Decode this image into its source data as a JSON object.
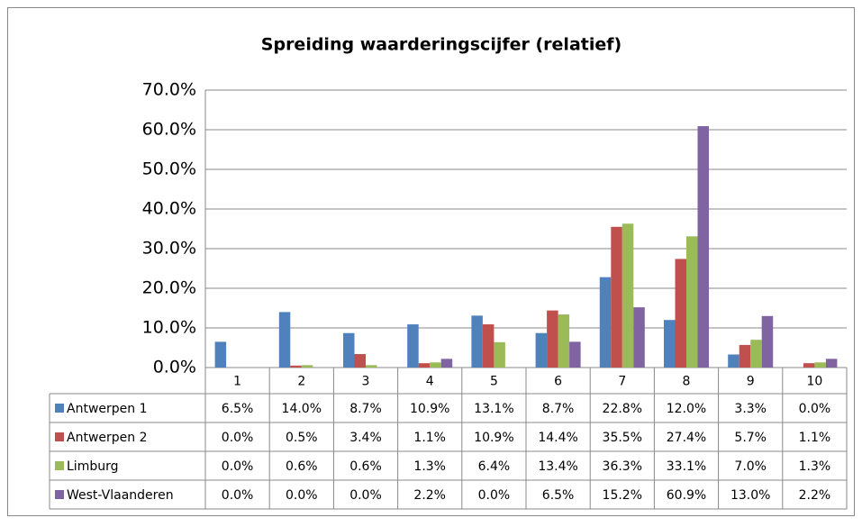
{
  "chart_data": {
    "type": "bar",
    "title": "Spreiding waarderingscijfer (relatief)",
    "categories": [
      "1",
      "2",
      "3",
      "4",
      "5",
      "6",
      "7",
      "8",
      "9",
      "10"
    ],
    "series": [
      {
        "name": "Antwerpen 1",
        "color": "#4f81bd",
        "values": [
          6.5,
          14.0,
          8.7,
          10.9,
          13.1,
          8.7,
          22.8,
          12.0,
          3.3,
          0.0
        ],
        "value_labels": [
          "6.5%",
          "14.0%",
          "8.7%",
          "10.9%",
          "13.1%",
          "8.7%",
          "22.8%",
          "12.0%",
          "3.3%",
          "0.0%"
        ]
      },
      {
        "name": "Antwerpen 2",
        "color": "#c0504d",
        "values": [
          0.0,
          0.5,
          3.4,
          1.1,
          10.9,
          14.4,
          35.5,
          27.4,
          5.7,
          1.1
        ],
        "value_labels": [
          "0.0%",
          "0.5%",
          "3.4%",
          "1.1%",
          "10.9%",
          "14.4%",
          "35.5%",
          "27.4%",
          "5.7%",
          "1.1%"
        ]
      },
      {
        "name": "Limburg",
        "color": "#9bbb59",
        "values": [
          0.0,
          0.6,
          0.6,
          1.3,
          6.4,
          13.4,
          36.3,
          33.1,
          7.0,
          1.3
        ],
        "value_labels": [
          "0.0%",
          "0.6%",
          "0.6%",
          "1.3%",
          "6.4%",
          "13.4%",
          "36.3%",
          "33.1%",
          "7.0%",
          "1.3%"
        ]
      },
      {
        "name": "West-Vlaanderen",
        "color": "#8064a2",
        "values": [
          0.0,
          0.0,
          0.0,
          2.2,
          0.0,
          6.5,
          15.2,
          60.9,
          13.0,
          2.2
        ],
        "value_labels": [
          "0.0%",
          "0.0%",
          "0.0%",
          "2.2%",
          "0.0%",
          "6.5%",
          "15.2%",
          "60.9%",
          "13.0%",
          "2.2%"
        ]
      }
    ],
    "ylim": [
      0,
      70
    ],
    "yticks": [
      {
        "value": 0,
        "label": "0.0%"
      },
      {
        "value": 10,
        "label": "10.0%"
      },
      {
        "value": 20,
        "label": "20.0%"
      },
      {
        "value": 30,
        "label": "30.0%"
      },
      {
        "value": 40,
        "label": "40.0%"
      },
      {
        "value": 50,
        "label": "50.0%"
      },
      {
        "value": 60,
        "label": "60.0%"
      },
      {
        "value": 70,
        "label": "70.0%"
      }
    ],
    "grid": true
  }
}
